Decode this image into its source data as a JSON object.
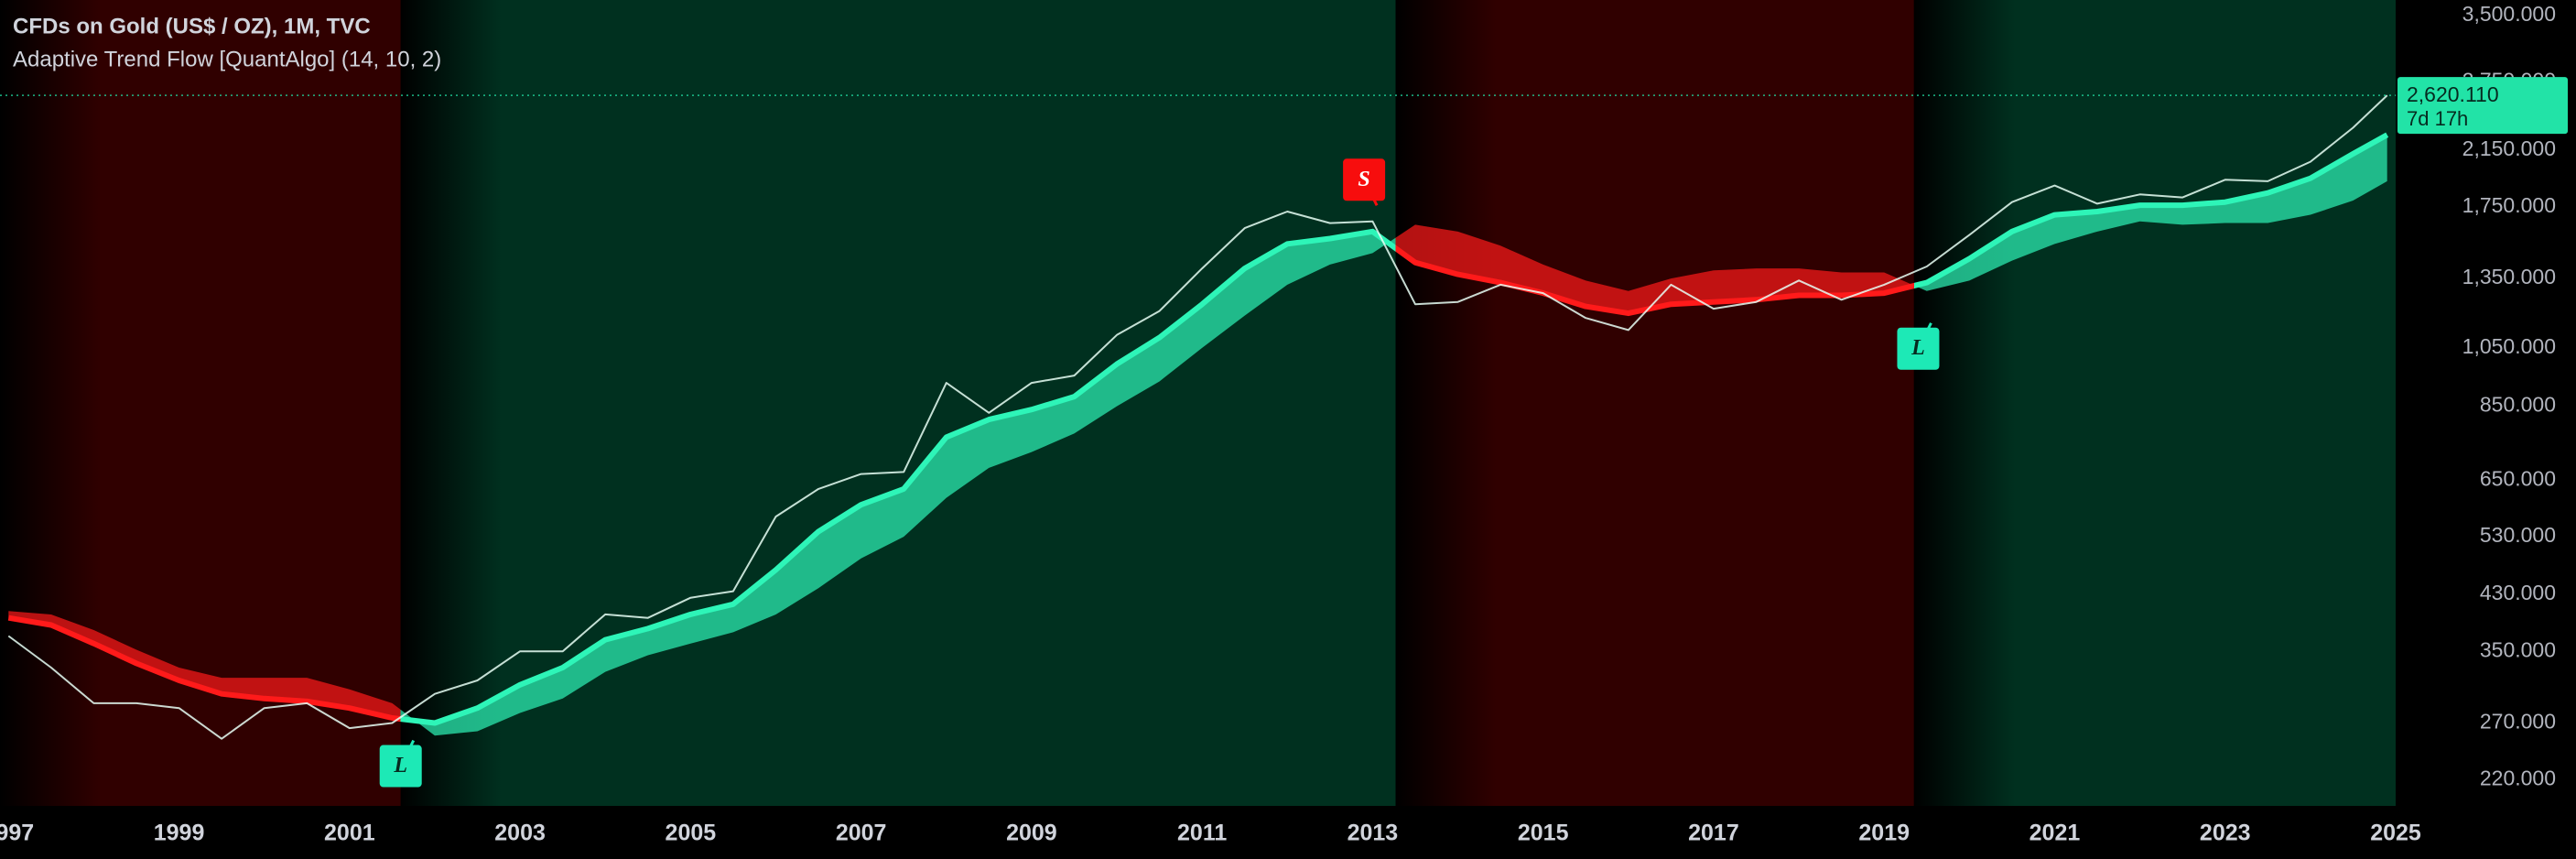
{
  "chart_data": {
    "type": "line",
    "title": "CFDs on Gold (US$ / OZ), 1M, TVC",
    "subtitle": "Adaptive Trend Flow [QuantAlgo] (14, 10, 2)",
    "log_scale": true,
    "grid": false,
    "xlim": [
      1996.9,
      2025.0
    ],
    "xticks": [
      1997,
      1999,
      2001,
      2003,
      2005,
      2007,
      2009,
      2011,
      2013,
      2015,
      2017,
      2019,
      2021,
      2023,
      2025
    ],
    "ylim": [
      200,
      3700
    ],
    "yticks": [
      {
        "value": 220,
        "label": "220.000"
      },
      {
        "value": 270,
        "label": "270.000"
      },
      {
        "value": 350,
        "label": "350.000"
      },
      {
        "value": 430,
        "label": "430.000"
      },
      {
        "value": 530,
        "label": "530.000"
      },
      {
        "value": 650,
        "label": "650.000"
      },
      {
        "value": 850,
        "label": "850.000"
      },
      {
        "value": 1050,
        "label": "1,050.000"
      },
      {
        "value": 1350,
        "label": "1,350.000"
      },
      {
        "value": 1750,
        "label": "1,750.000"
      },
      {
        "value": 2150,
        "label": "2,150.000"
      },
      {
        "value": 2750,
        "label": "2,750.000"
      },
      {
        "value": 3500,
        "label": "3,500.000"
      }
    ],
    "x": [
      1997.0,
      1997.5,
      1998.0,
      1998.5,
      1999.0,
      1999.5,
      2000.0,
      2000.5,
      2001.0,
      2001.5,
      2002.0,
      2002.5,
      2003.0,
      2003.5,
      2004.0,
      2004.5,
      2005.0,
      2005.5,
      2006.0,
      2006.5,
      2007.0,
      2007.5,
      2008.0,
      2008.5,
      2009.0,
      2009.5,
      2010.0,
      2010.5,
      2011.0,
      2011.5,
      2012.0,
      2012.5,
      2013.0,
      2013.5,
      2014.0,
      2014.5,
      2015.0,
      2015.5,
      2016.0,
      2016.5,
      2017.0,
      2017.5,
      2018.0,
      2018.5,
      2019.0,
      2019.5,
      2020.0,
      2020.5,
      2021.0,
      2021.5,
      2022.0,
      2022.5,
      2023.0,
      2023.5,
      2024.0,
      2024.5,
      2024.9
    ],
    "series": [
      {
        "color": "#e8fff6",
        "values": [
          370,
          330,
          290,
          290,
          285,
          255,
          285,
          290,
          265,
          270,
          300,
          315,
          350,
          350,
          400,
          395,
          425,
          435,
          570,
          630,
          665,
          670,
          925,
          830,
          925,
          950,
          1100,
          1200,
          1400,
          1620,
          1720,
          1650,
          1660,
          1230,
          1240,
          1320,
          1280,
          1170,
          1120,
          1320,
          1210,
          1240,
          1340,
          1250,
          1320,
          1410,
          1580,
          1780,
          1890,
          1770,
          1830,
          1810,
          1930,
          1920,
          2060,
          2330,
          2620.11
        ]
      },
      {
        "color": "#2ef5b8",
        "values": [
          395,
          385,
          360,
          335,
          315,
          300,
          295,
          292,
          285,
          275,
          270,
          285,
          310,
          330,
          365,
          380,
          400,
          415,
          470,
          540,
          595,
          630,
          760,
          810,
          840,
          880,
          990,
          1090,
          1230,
          1400,
          1530,
          1560,
          1600,
          1430,
          1370,
          1330,
          1280,
          1220,
          1190,
          1230,
          1240,
          1250,
          1270,
          1270,
          1280,
          1330,
          1450,
          1600,
          1700,
          1720,
          1760,
          1760,
          1780,
          1840,
          1940,
          2120,
          2270
        ]
      },
      {
        "color": "#18c890",
        "values": [
          405,
          400,
          378,
          352,
          330,
          318,
          318,
          318,
          305,
          290,
          258,
          262,
          280,
          295,
          325,
          345,
          360,
          375,
          400,
          440,
          490,
          530,
          610,
          680,
          720,
          770,
          850,
          930,
          1050,
          1180,
          1320,
          1420,
          1480,
          1640,
          1600,
          1520,
          1420,
          1340,
          1290,
          1350,
          1390,
          1400,
          1400,
          1380,
          1380,
          1290,
          1340,
          1440,
          1530,
          1600,
          1660,
          1640,
          1650,
          1650,
          1700,
          1790,
          1920
        ]
      }
    ],
    "regimes": [
      {
        "start": 1996.9,
        "end": 2001.6,
        "color": "#ff1a1a",
        "background": "#300000"
      },
      {
        "start": 2001.6,
        "end": 2013.27,
        "color": "#2ef5b8",
        "background": "#00301f"
      },
      {
        "start": 2013.27,
        "end": 2019.35,
        "color": "#ff1a1a",
        "background": "#300000"
      },
      {
        "start": 2019.35,
        "end": 2025.0,
        "color": "#2ef5b8",
        "background": "#00301f"
      }
    ],
    "signals": [
      {
        "label": "L",
        "x": 2001.6,
        "y": 231,
        "color": "#1de9b6"
      },
      {
        "label": "S",
        "x": 2012.9,
        "y": 1930,
        "color": "#f70d0d"
      },
      {
        "label": "L",
        "x": 2019.4,
        "y": 1047,
        "color": "#1de9b6"
      }
    ],
    "last_price": {
      "value": 2620.11,
      "label": "2,620.110"
    },
    "countdown": "7d 17h",
    "last_price_color": "#22e3a7"
  }
}
